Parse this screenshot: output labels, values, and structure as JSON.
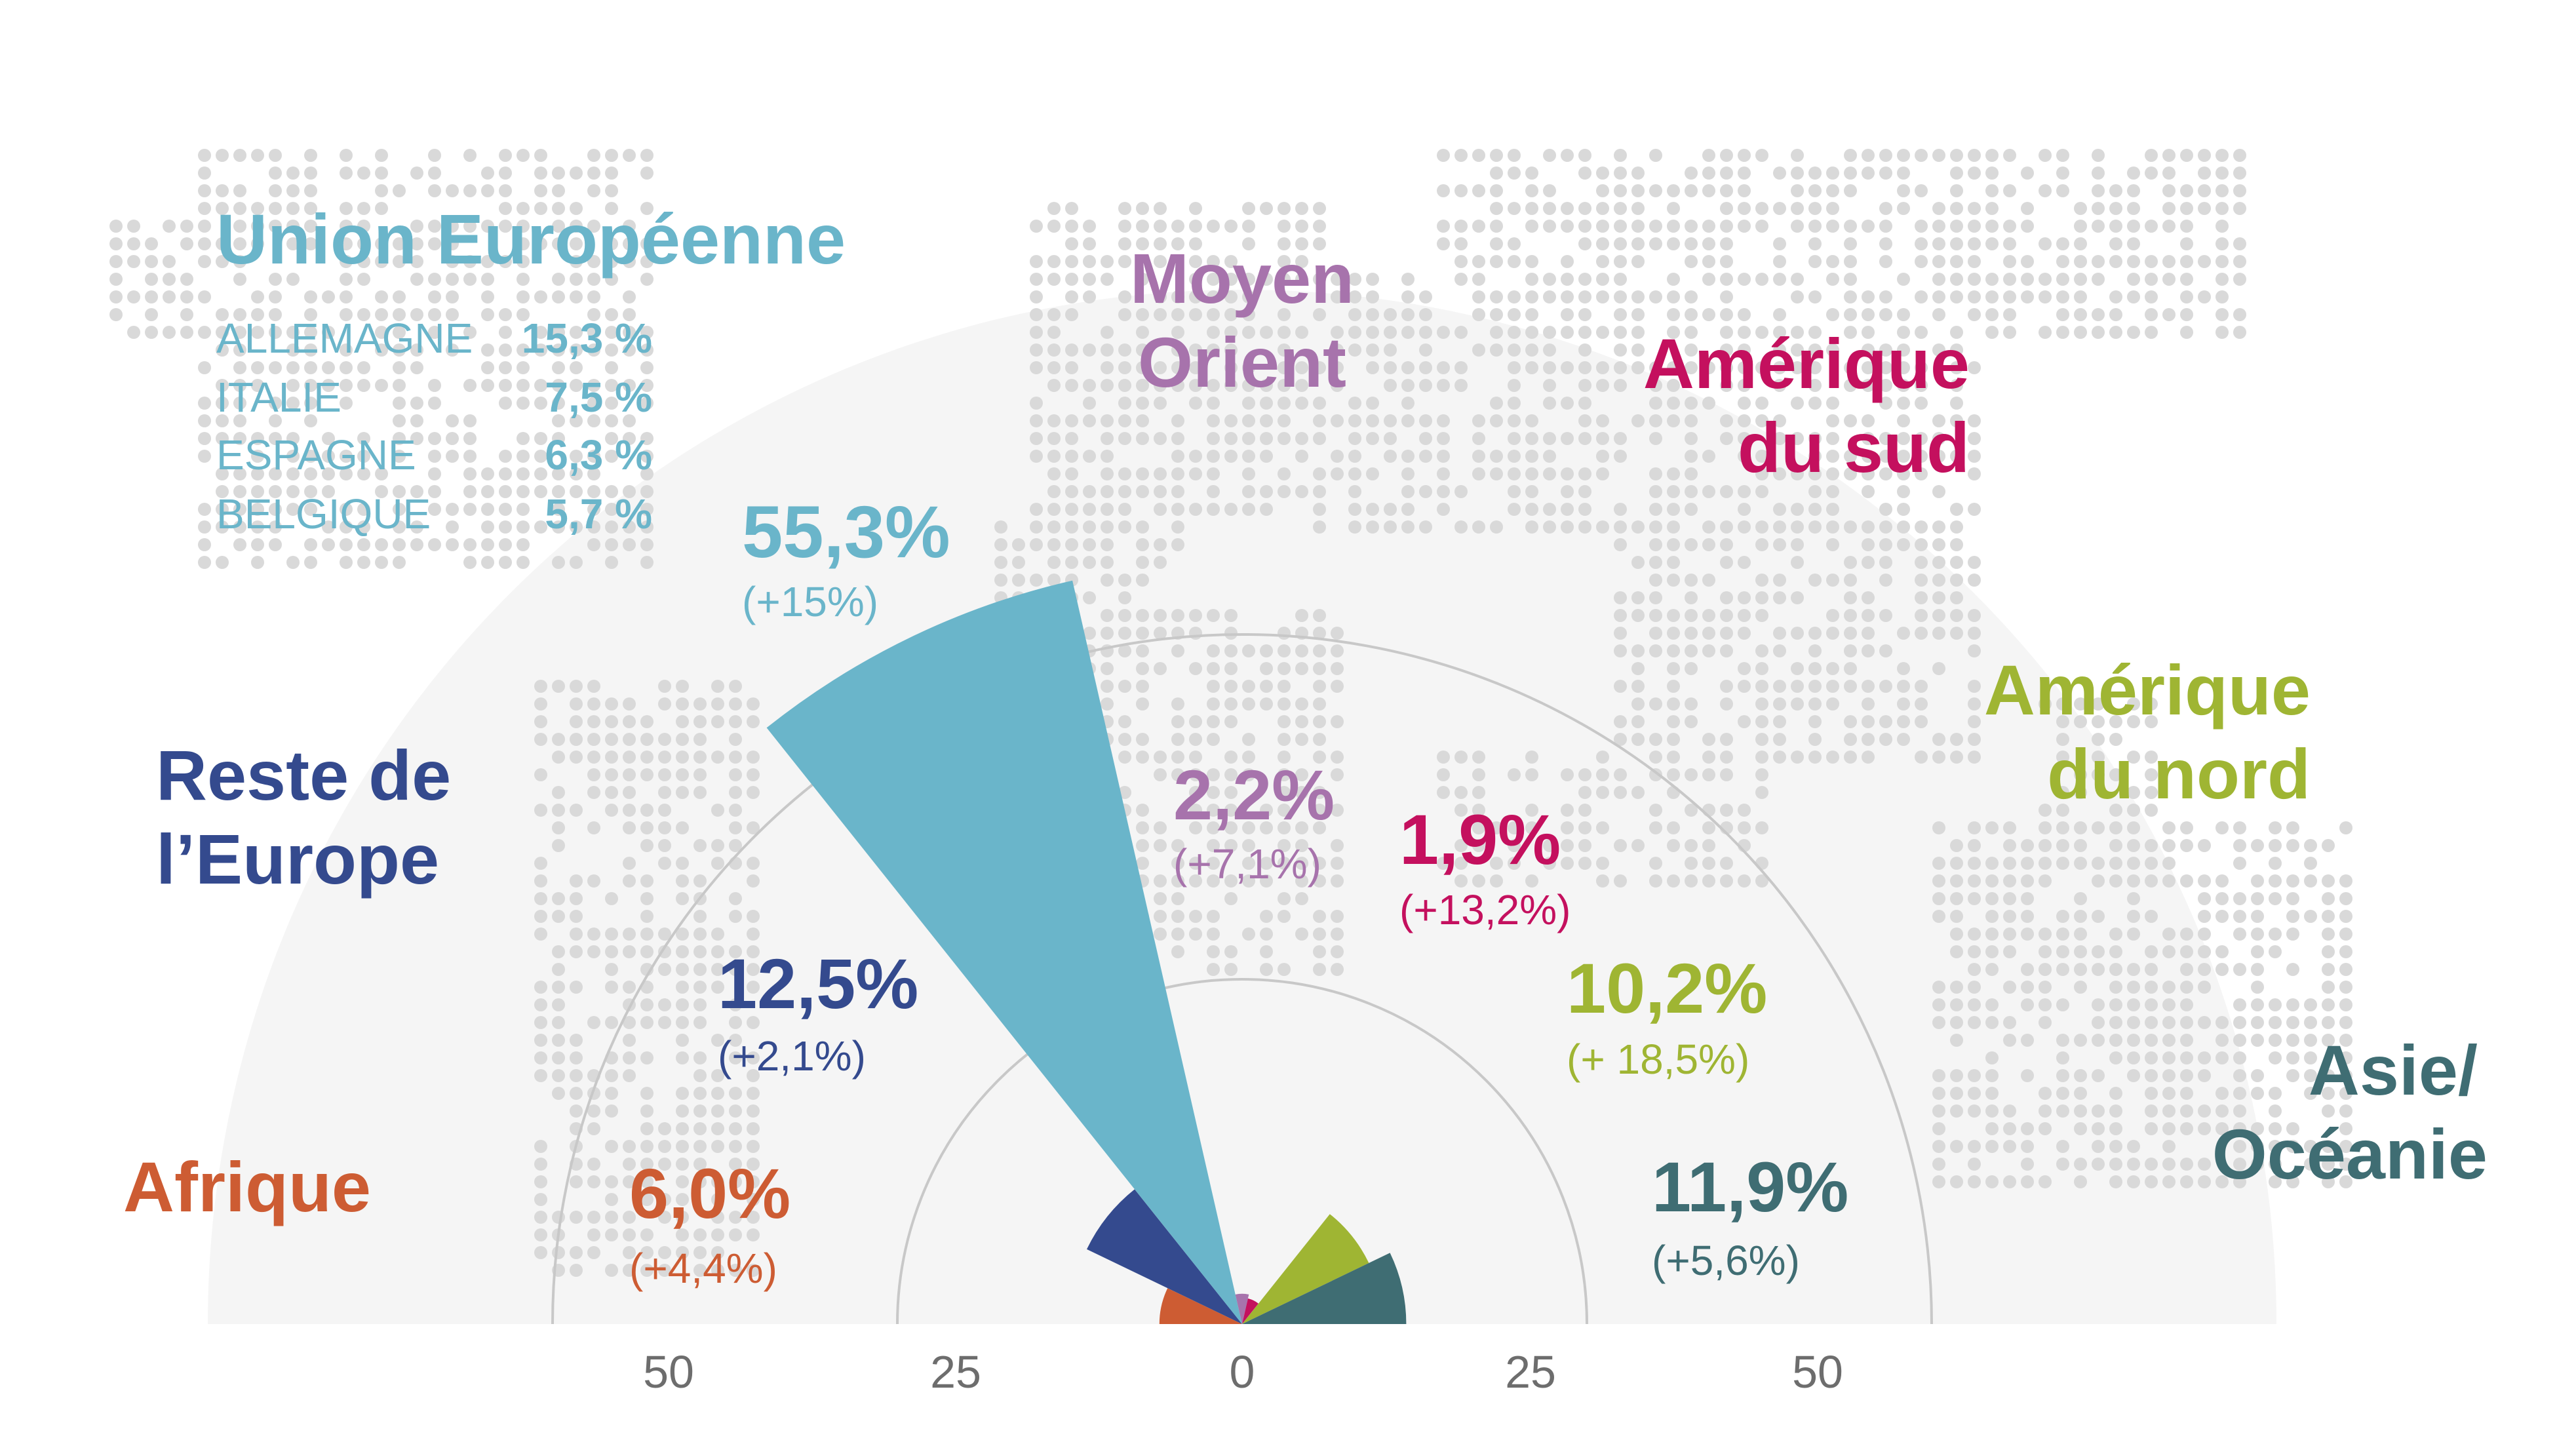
{
  "colors": {
    "background_disc": "#f5f5f5",
    "dots": "#d9d9d9",
    "rings": "#c8c8c8",
    "axis_ticks": "#6d6d6d",
    "union_europeenne": "#6ab5ca",
    "reste_europe": "#344a8e",
    "afrique": "#cd5c33",
    "moyen_orient": "#a773ac",
    "amerique_sud": "#c4105e",
    "amerique_nord": "#9fb533",
    "asie_oceanie": "#3f6d73"
  },
  "eu_box": {
    "title": "Union Européenne",
    "countries": [
      {
        "name": "ALLEMAGNE",
        "value": "15,3 %"
      },
      {
        "name": "ITALIE",
        "value": "7,5 %"
      },
      {
        "name": "ESPAGNE",
        "value": "6,3 %"
      },
      {
        "name": "BELGIQUE",
        "value": "5,7 %"
      }
    ]
  },
  "chart_data": {
    "type": "polar-bar",
    "x_ticks": [
      "50",
      "25",
      "0",
      "25",
      "50"
    ],
    "rings": [
      25,
      50
    ],
    "rmax": 60,
    "series": [
      {
        "key": "afrique",
        "name_lines": [
          "Afrique"
        ],
        "value": 6.0,
        "label": "6,0%",
        "change": "(+4,4%)"
      },
      {
        "key": "reste_europe",
        "name_lines": [
          "Reste de",
          "l’Europe"
        ],
        "value": 12.5,
        "label": "12,5%",
        "change": "(+2,1%)"
      },
      {
        "key": "union_europeenne",
        "name_lines": [],
        "value": 55.3,
        "label": "55,3%",
        "change": "(+15%)"
      },
      {
        "key": "moyen_orient",
        "name_lines": [
          "Moyen",
          "Orient"
        ],
        "value": 2.2,
        "label": "2,2%",
        "change": "(+7,1%)"
      },
      {
        "key": "amerique_sud",
        "name_lines": [
          "Amérique",
          "du sud"
        ],
        "value": 1.9,
        "label": "1,9%",
        "change": "(+13,2%)"
      },
      {
        "key": "amerique_nord",
        "name_lines": [
          "Amérique",
          "du nord"
        ],
        "value": 10.2,
        "label": "10,2%",
        "change": "(+ 18,5%)"
      },
      {
        "key": "asie_oceanie",
        "name_lines": [
          "Asie/",
          "Océanie"
        ],
        "value": 11.9,
        "label": "11,9%",
        "change": "(+5,6%)"
      }
    ]
  }
}
